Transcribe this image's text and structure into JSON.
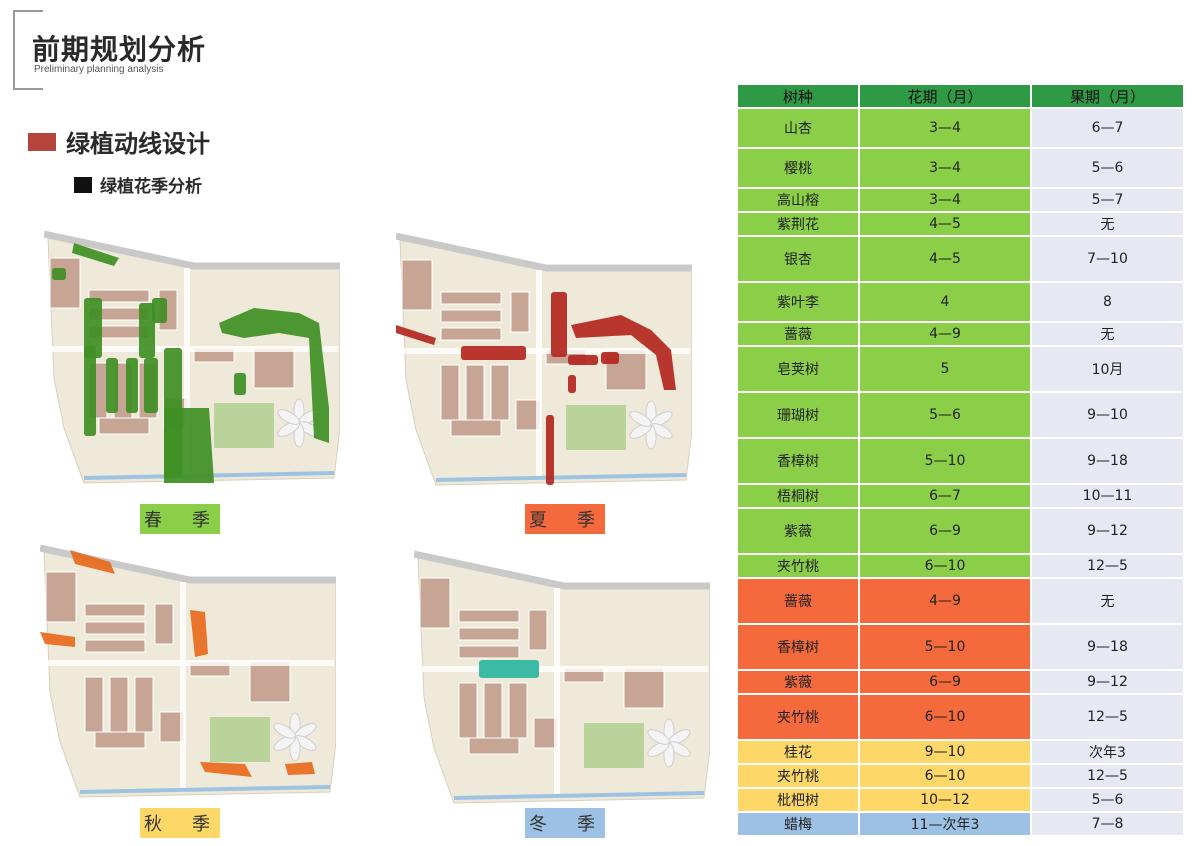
{
  "header": {
    "title": "前期规划分析",
    "subtitle": "Preliminary planning analysis"
  },
  "section": {
    "title": "绿植动线设计",
    "color": "#b5443a"
  },
  "subsection": {
    "title": "绿植花季分析"
  },
  "maps": [
    {
      "label": "春　季",
      "label_color": "#8bcf49",
      "highlight_color": "#3f8f25"
    },
    {
      "label": "夏　季",
      "label_color": "#f56a3c",
      "highlight_color": "#b3261e"
    },
    {
      "label": "秋　季",
      "label_color": "#fed769",
      "highlight_color": "#e8691d"
    },
    {
      "label": "冬　季",
      "label_color": "#9cc1e4",
      "highlight_color": "#2bb5a0"
    }
  ],
  "table": {
    "headers": [
      "树种",
      "花期（月）",
      "果期（月）"
    ],
    "header_color": "#2f9a45",
    "rows": [
      {
        "season": "spring",
        "tree": "山杏",
        "flower": "3—4",
        "fruit": "6—7"
      },
      {
        "season": "spring",
        "tree": "樱桃",
        "flower": "3—4",
        "fruit": "5—6"
      },
      {
        "season": "spring",
        "tree": "高山榕",
        "flower": "3—4",
        "fruit": "5—7"
      },
      {
        "season": "spring",
        "tree": "紫荆花",
        "flower": "4—5",
        "fruit": "无"
      },
      {
        "season": "spring",
        "tree": "银杏",
        "flower": "4—5",
        "fruit": "7—10"
      },
      {
        "season": "spring",
        "tree": "紫叶李",
        "flower": "4",
        "fruit": "8"
      },
      {
        "season": "spring",
        "tree": "蔷薇",
        "flower": "4—9",
        "fruit": "无"
      },
      {
        "season": "spring",
        "tree": "皂荚树",
        "flower": "5",
        "fruit": "10月"
      },
      {
        "season": "spring",
        "tree": "珊瑚树",
        "flower": "5—6",
        "fruit": "9—10"
      },
      {
        "season": "spring",
        "tree": "香樟树",
        "flower": "5—10",
        "fruit": "9—18"
      },
      {
        "season": "spring",
        "tree": "梧桐树",
        "flower": "6—7",
        "fruit": "10—11"
      },
      {
        "season": "spring",
        "tree": "紫薇",
        "flower": "6—9",
        "fruit": "9—12"
      },
      {
        "season": "spring",
        "tree": "夹竹桃",
        "flower": "6—10",
        "fruit": "12—5"
      },
      {
        "season": "summer",
        "tree": "蔷薇",
        "flower": "4—9",
        "fruit": "无"
      },
      {
        "season": "summer",
        "tree": "香樟树",
        "flower": "5—10",
        "fruit": "9—18"
      },
      {
        "season": "summer",
        "tree": "紫薇",
        "flower": "6—9",
        "fruit": "9—12"
      },
      {
        "season": "summer",
        "tree": "夹竹桃",
        "flower": "6—10",
        "fruit": "12—5"
      },
      {
        "season": "autumn",
        "tree": "桂花",
        "flower": "9—10",
        "fruit": "次年3"
      },
      {
        "season": "autumn",
        "tree": "夹竹桃",
        "flower": "6—10",
        "fruit": "12—5"
      },
      {
        "season": "autumn",
        "tree": "枇杷树",
        "flower": "10—12",
        "fruit": "5—6"
      },
      {
        "season": "winter",
        "tree": "蜡梅",
        "flower": "11—次年3",
        "fruit": "7—8"
      }
    ]
  }
}
